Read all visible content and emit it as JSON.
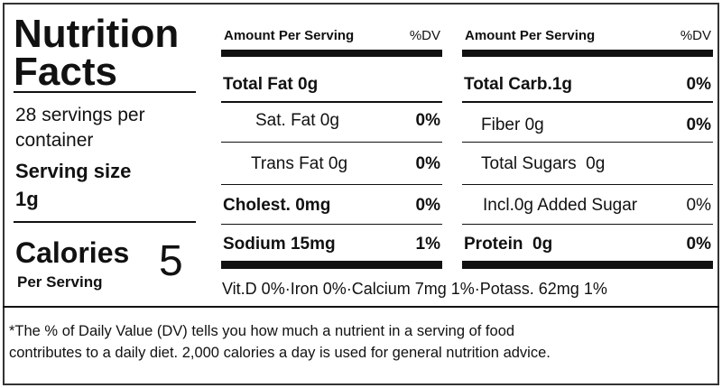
{
  "label": {
    "title": [
      "Nutrition",
      "Facts"
    ],
    "servings": [
      "28 servings per",
      "container"
    ],
    "serving_size_label": "Serving size",
    "serving_size": "1g",
    "calories_label": "Calories",
    "calories_sub": "Per Serving",
    "calories": "5"
  },
  "columns": [
    {
      "header": {
        "amount": "Amount Per Serving",
        "dv": "%DV"
      },
      "rows": [
        {
          "label": "Total Fat 0g"
        },
        {
          "label": "Sat. Fat 0g",
          "dv": "0%"
        },
        {
          "label": "Trans Fat 0g",
          "dv": "0%"
        },
        {
          "label": "Cholest. 0mg",
          "dv": "0%"
        },
        {
          "label": "Sodium 15mg",
          "dv": "1%"
        }
      ]
    },
    {
      "header": {
        "amount": "Amount Per Serving",
        "dv": "%DV"
      },
      "rows": [
        {
          "label": "Total Carb.1g",
          "dv": "0%"
        },
        {
          "label": "Fiber 0g",
          "dv": "0%"
        },
        {
          "label": "Total Sugars  0g"
        },
        {
          "label": "Incl.0g Added Sugar",
          "dv": "0%"
        },
        {
          "label": "Protein  0g",
          "dv": "0%"
        }
      ]
    }
  ],
  "micronutrients": "Vit.D 0%·Iron 0%·Calcium 7mg 1%·Potass. 62mg 1%",
  "footnote": [
    "*The % of Daily Value (DV) tells you how much a nutrient in a serving of food",
    "contributes to a daily diet. 2,000 calories a day is used for general nutrition advice."
  ]
}
